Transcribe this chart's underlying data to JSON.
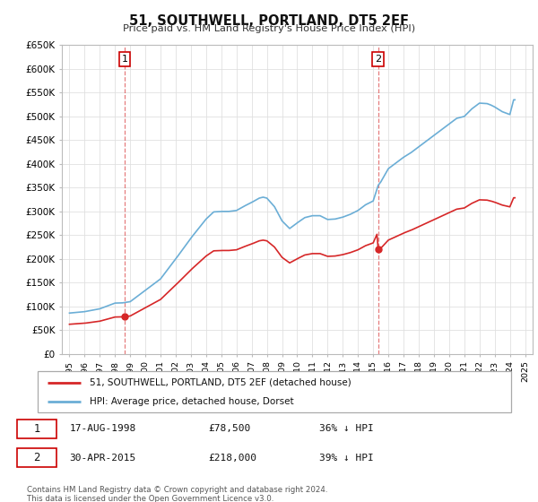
{
  "title": "51, SOUTHWELL, PORTLAND, DT5 2EF",
  "subtitle": "Price paid vs. HM Land Registry's House Price Index (HPI)",
  "legend_line1": "51, SOUTHWELL, PORTLAND, DT5 2EF (detached house)",
  "legend_line2": "HPI: Average price, detached house, Dorset",
  "footer": "Contains HM Land Registry data © Crown copyright and database right 2024.\nThis data is licensed under the Open Government Licence v3.0.",
  "sale1_label": "1",
  "sale1_date": "17-AUG-1998",
  "sale1_price": "£78,500",
  "sale1_hpi": "36% ↓ HPI",
  "sale2_label": "2",
  "sale2_date": "30-APR-2015",
  "sale2_price": "£218,000",
  "sale2_hpi": "39% ↓ HPI",
  "sale1_x": 1998.63,
  "sale1_y": 78500,
  "sale2_x": 2015.33,
  "sale2_y": 218000,
  "hpi_color": "#6baed6",
  "price_color": "#d62728",
  "vline_color": "#d62728",
  "vline_alpha": 0.5,
  "ylim": [
    0,
    650000
  ],
  "xlim": [
    1994.5,
    2025.5
  ],
  "yticks": [
    0,
    50000,
    100000,
    150000,
    200000,
    250000,
    300000,
    350000,
    400000,
    450000,
    500000,
    550000,
    600000,
    650000
  ],
  "ytick_labels": [
    "£0",
    "£50K",
    "£100K",
    "£150K",
    "£200K",
    "£250K",
    "£300K",
    "£350K",
    "£400K",
    "£450K",
    "£500K",
    "£550K",
    "£600K",
    "£650K"
  ],
  "background_color": "#ffffff",
  "grid_color": "#e0e0e0",
  "plot_bg_color": "#ffffff"
}
